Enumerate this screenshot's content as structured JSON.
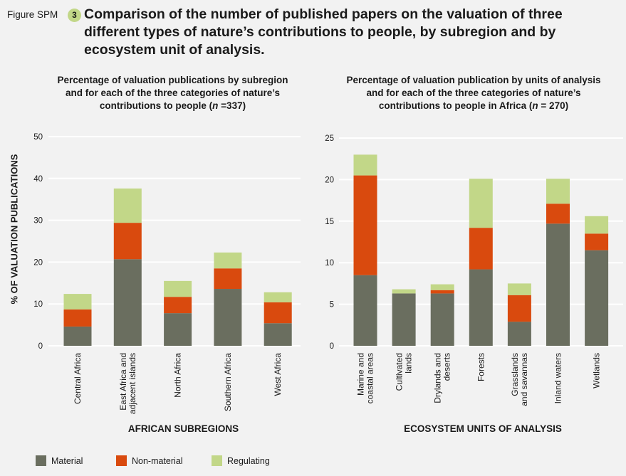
{
  "figure": {
    "label": "Figure SPM",
    "number": "3",
    "title": "Comparison of the number of published papers on the valuation of three different types of nature’s contributions to people, by subregion and by ecosystem unit of analysis."
  },
  "colors": {
    "material": "#6a6e5f",
    "non_material": "#d94a0e",
    "regulating": "#c2d788",
    "grid": "#ffffff",
    "badge": "#c2d788"
  },
  "y_axis_title": "% OF VALUATION PUBLICATIONS",
  "legend": [
    {
      "key": "material",
      "label": "Material"
    },
    {
      "key": "non_material",
      "label": "Non-material"
    },
    {
      "key": "regulating",
      "label": "Regulating"
    }
  ],
  "chart_data": [
    {
      "type": "bar",
      "stacked": true,
      "title_lines": [
        "Percentage of valuation publications by subregion",
        "and for each of the three categories of nature’s"
      ],
      "title_last_pre": "contributions to people (",
      "title_last_n": "n",
      "title_last_post": " =337)",
      "xlabel": "AFRICAN SUBREGIONS",
      "ylabel": "% OF VALUATION PUBLICATIONS",
      "ylim": [
        0,
        50
      ],
      "yticks": [
        "0",
        "10",
        "20",
        "30",
        "40",
        "50"
      ],
      "grid": true,
      "categories": [
        [
          "Central Africa"
        ],
        [
          "East Africa and",
          "adjacent islands"
        ],
        [
          "North Africa"
        ],
        [
          "Southern Africa"
        ],
        [
          "West Africa"
        ]
      ],
      "series": [
        {
          "name": "Material",
          "values": [
            4.6,
            20.7,
            7.8,
            13.6,
            5.4
          ]
        },
        {
          "name": "Non-material",
          "values": [
            4.1,
            8.7,
            3.9,
            4.9,
            5.0
          ]
        },
        {
          "name": "Regulating",
          "values": [
            3.7,
            8.2,
            3.8,
            3.8,
            2.4
          ]
        }
      ]
    },
    {
      "type": "bar",
      "stacked": true,
      "title_lines": [
        "Percentage of valuation publication by units of analysis",
        "and for each of the three categories of nature’s"
      ],
      "title_last_pre": "contributions to people in Africa (",
      "title_last_n": "n",
      "title_last_post": " = 270)",
      "xlabel": "ECOSYSTEM UNITS OF ANALYSIS",
      "ylabel": "",
      "ylim": [
        0,
        25
      ],
      "yticks": [
        "0",
        "5",
        "10",
        "15",
        "20",
        "25"
      ],
      "grid": true,
      "categories": [
        [
          "Marine and",
          "coastal areas"
        ],
        [
          "Cultivated",
          "lands"
        ],
        [
          "Drylands and",
          "deserts"
        ],
        [
          "Forests"
        ],
        [
          "Grasslands",
          "and savannas"
        ],
        [
          "Inland waters"
        ],
        [
          "Wetlands"
        ]
      ],
      "series": [
        {
          "name": "Material",
          "values": [
            8.5,
            6.3,
            6.3,
            9.2,
            2.9,
            14.7,
            11.5
          ]
        },
        {
          "name": "Non-material",
          "values": [
            12.0,
            0,
            0.4,
            5.0,
            3.2,
            2.4,
            2.0
          ]
        },
        {
          "name": "Regulating",
          "values": [
            2.5,
            0.5,
            0.7,
            5.9,
            1.4,
            3.0,
            2.1
          ]
        }
      ]
    }
  ]
}
